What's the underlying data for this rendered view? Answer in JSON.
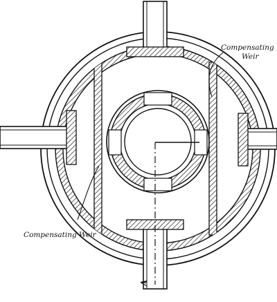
{
  "diagram": {
    "labels": {
      "weir_top_line1": "Compensating",
      "weir_top_line2": "Weir",
      "weir_bottom": "Compensating Weir",
      "section_marker": "A"
    }
  }
}
